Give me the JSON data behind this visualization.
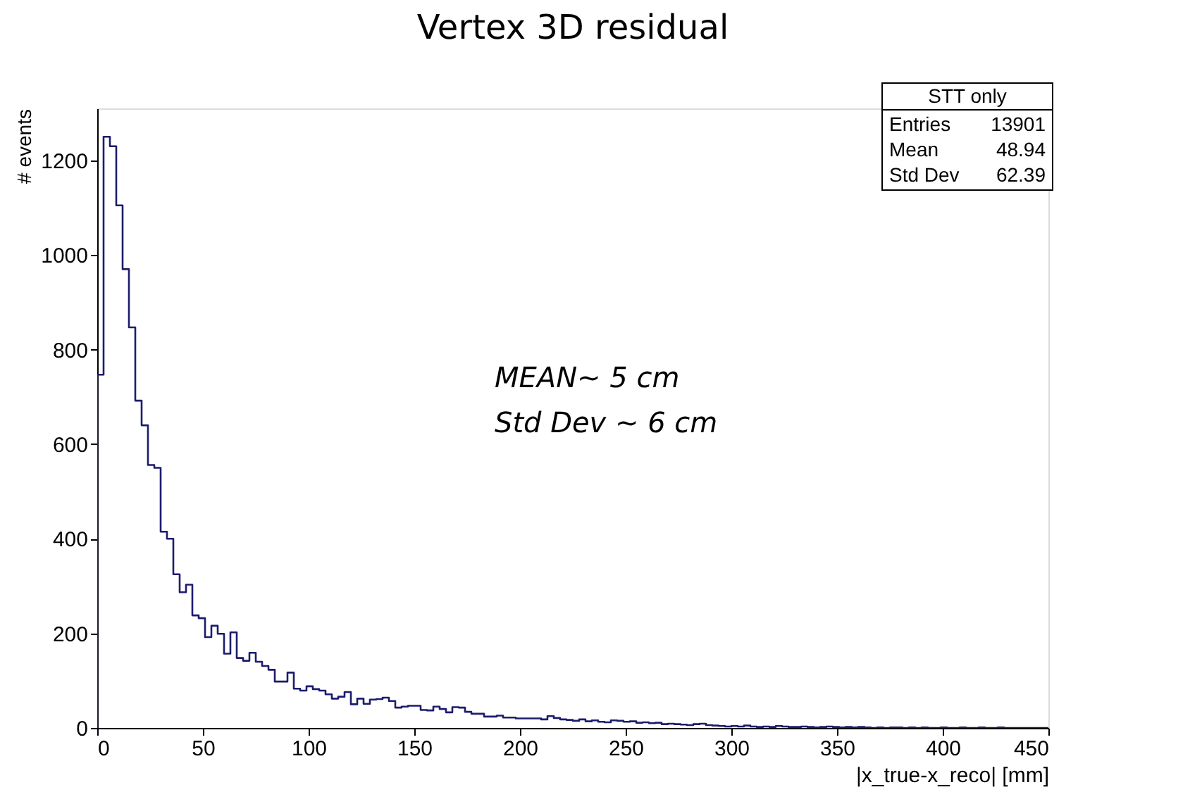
{
  "chart_data": {
    "type": "histogram",
    "title": "Vertex 3D residual",
    "xlabel": "|x_true-x_reco| [mm]",
    "ylabel": "# events",
    "color": "#1c1c6e",
    "bins": [
      0,
      3,
      6,
      9,
      12,
      15,
      18,
      21,
      24,
      27,
      30,
      33,
      36,
      39,
      42,
      45,
      48,
      51,
      54,
      57,
      60,
      63,
      66,
      69,
      72,
      75,
      78,
      81,
      84,
      87,
      90,
      93,
      96,
      99,
      102,
      105,
      108,
      111,
      114,
      117,
      120,
      123,
      126,
      129,
      132,
      135,
      138,
      141,
      144,
      147,
      150,
      153,
      156,
      159,
      162,
      165,
      168,
      171,
      174,
      177,
      180,
      183,
      186,
      189,
      192,
      195,
      198,
      201,
      204,
      207,
      210,
      213,
      216,
      219,
      222,
      225,
      228,
      231,
      234,
      237,
      240,
      243,
      246,
      249,
      252,
      255,
      258,
      261,
      264,
      267,
      270,
      273,
      276,
      279,
      282,
      285,
      288,
      291,
      294,
      297,
      300,
      303,
      306,
      309,
      312,
      315,
      318,
      321,
      324,
      327,
      330,
      333,
      336,
      339,
      342,
      345,
      348,
      351,
      354,
      357,
      360,
      363,
      366,
      369,
      372,
      375,
      378,
      381,
      384,
      387,
      390,
      393,
      396,
      399,
      402,
      405,
      408,
      411,
      414,
      417,
      420,
      423,
      426,
      429,
      432,
      435,
      438,
      441,
      444,
      447,
      450
    ],
    "values": [
      747,
      1250,
      1230,
      1105,
      970,
      847,
      692,
      640,
      556,
      550,
      415,
      400,
      325,
      287,
      303,
      238,
      232,
      192,
      216,
      199,
      157,
      202,
      148,
      142,
      159,
      140,
      131,
      123,
      98,
      98,
      117,
      83,
      79,
      88,
      82,
      79,
      71,
      62,
      66,
      76,
      50,
      62,
      51,
      60,
      61,
      64,
      57,
      43,
      45,
      47,
      47,
      38,
      37,
      45,
      40,
      33,
      44,
      43,
      34,
      30,
      30,
      24,
      24,
      26,
      22,
      22,
      20,
      20,
      20,
      20,
      18,
      25,
      21,
      18,
      17,
      15,
      18,
      14,
      16,
      13,
      12,
      16,
      15,
      13,
      14,
      11,
      12,
      10,
      11,
      8,
      9,
      8,
      7,
      6,
      8,
      9,
      6,
      5,
      4,
      3,
      4,
      3,
      5,
      3,
      2,
      3,
      2,
      4,
      3,
      2,
      2,
      3,
      2,
      1,
      2,
      3,
      2,
      1,
      2,
      1,
      2,
      1,
      0,
      1,
      0,
      1,
      1,
      0,
      1,
      0,
      1,
      0,
      0,
      1,
      0,
      0,
      1,
      0,
      0,
      1,
      0,
      0,
      1,
      0,
      0,
      0,
      0,
      0,
      0,
      0
    ],
    "xlim": [
      0,
      450
    ],
    "xticks": [
      0,
      50,
      100,
      150,
      200,
      250,
      300,
      350,
      400,
      450
    ],
    "ylim": [
      0,
      1310
    ],
    "yticks": [
      0,
      200,
      400,
      600,
      800,
      1000,
      1200
    ],
    "grid": false,
    "annotations": [
      "STT only",
      "Entries",
      "13901",
      "Mean",
      "48.94",
      "Std Dev",
      "62.39",
      "MEAN~ 5 cm",
      "Std Dev ~ 6 cm"
    ]
  }
}
